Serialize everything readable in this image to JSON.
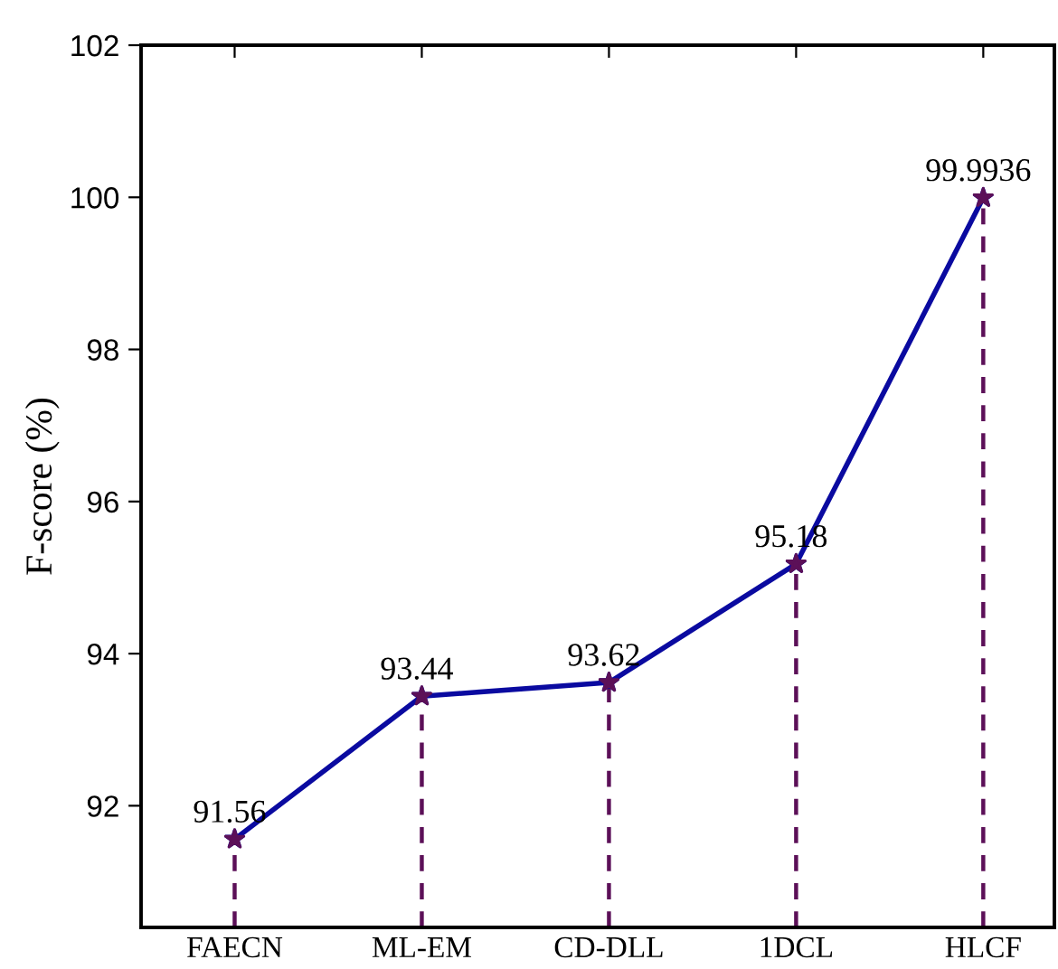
{
  "chart_data": {
    "type": "line",
    "ylabel": "F-score (%)",
    "categories": [
      "FAECN",
      "ML-EM",
      "CD-DLL",
      "1DCL",
      "HLCF"
    ],
    "series": [
      {
        "color": "#0a0aa0",
        "marker": "star",
        "line_style": "solid",
        "values": [
          91.56,
          93.44,
          93.62,
          95.18,
          99.9936
        ],
        "value_labels": [
          "91.56",
          "93.44",
          "93.62",
          "95.18",
          "99.9936"
        ]
      },
      {
        "type": "lollipop",
        "color": "#5c1058",
        "marker": "star",
        "line_style": "dashed",
        "values": [
          91.56,
          93.44,
          93.62,
          95.18,
          99.9936
        ]
      }
    ],
    "ylim": [
      90.4,
      102
    ],
    "yticks": [
      92,
      94,
      96,
      98,
      100,
      102
    ],
    "grid": false
  }
}
